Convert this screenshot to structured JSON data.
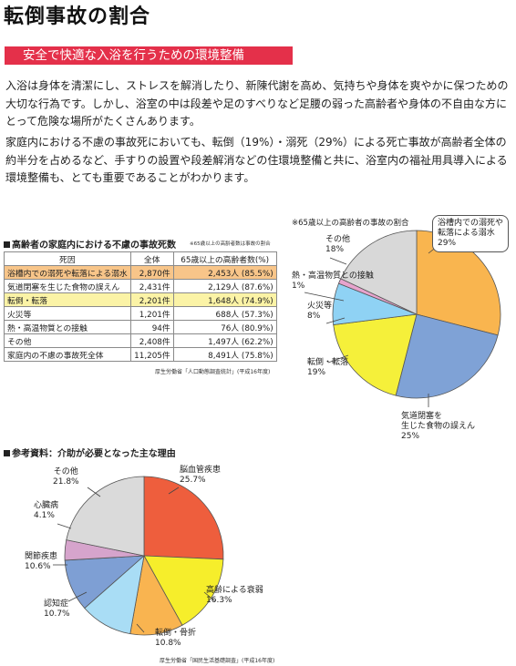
{
  "title": "転倒事故の割合",
  "banner": "安全で快適な入浴を行うための環境整備",
  "paragraphs": [
    "入浴は身体を清潔にし、ストレスを解消したり、新陳代謝を高め、気持ちや身体を爽やかに保つための大切な行為です。しかし、浴室の中は段差や足のすべりなど足腰の弱った高齢者や身体の不自由な方にとって危険な場所がたくさんあります。",
    "家庭内における不慮の事故死においても、転倒（19%）・溺死（29%）による死亡事故が高齢者全体の約半分を占めるなど、手すりの設置や段差解消などの住環境整備と共に、浴室内の福祉用具導入による環境整備も、とても重要であることがわかります。"
  ],
  "table_section": {
    "heading": "高齢者の家庭内における不慮の事故死数",
    "note": "※65歳以上の高齢者数は事故の割合",
    "headers": [
      "死因",
      "全体",
      "65歳以上の高齢者数(%)"
    ],
    "rows": [
      {
        "cause": "浴槽内での溺死や転落による溺水",
        "total": "2,870件",
        "elderly": "2,453人 (85.5%)",
        "highlight": "orange"
      },
      {
        "cause": "気道閉塞を生じた食物の誤えん",
        "total": "2,431件",
        "elderly": "2,129人 (87.6%)",
        "highlight": ""
      },
      {
        "cause": "転倒・転落",
        "total": "2,201件",
        "elderly": "1,648人 (74.9%)",
        "highlight": "yellow"
      },
      {
        "cause": "火災等",
        "total": "1,201件",
        "elderly": "688人 (57.3%)",
        "highlight": ""
      },
      {
        "cause": "熱・高温物質との接触",
        "total": "94件",
        "elderly": "76人 (80.9%)",
        "highlight": ""
      },
      {
        "cause": "その他",
        "total": "2,408件",
        "elderly": "1,497人 (62.2%)",
        "highlight": ""
      },
      {
        "cause": "家庭内の不慮の事故死全体",
        "total": "11,205件",
        "elderly": "8,491人 (75.8%)",
        "highlight": ""
      }
    ],
    "source": "厚生労働省「人口動態調査統計」(平成16年度)"
  },
  "chart_data": [
    {
      "type": "pie",
      "title": "※65歳以上の高齢者の事故の割合",
      "slices": [
        {
          "label": "浴槽内での溺死や転落による溺水",
          "value": 29,
          "color": "#f9b54f"
        },
        {
          "label": "気道閉塞を生じた食物の誤えん",
          "value": 25,
          "color": "#7fa2d6"
        },
        {
          "label": "転倒・転落",
          "value": 19,
          "color": "#f5f03a"
        },
        {
          "label": "火災等",
          "value": 8,
          "color": "#8fd2f4"
        },
        {
          "label": "熱・高温物質との接触",
          "value": 1,
          "color": "#e7a3cd"
        },
        {
          "label": "その他",
          "value": 18,
          "color": "#d8d8d8"
        }
      ],
      "display_labels": [
        {
          "line1": "浴槽内での溺死や",
          "line2": "転落による溺水",
          "pct": "29%"
        },
        {
          "line1": "気道閉塞を",
          "line2": "生じた食物の誤えん",
          "pct": "25%"
        },
        {
          "line1": "転倒・転落",
          "pct": "19%"
        },
        {
          "line1": "火災等",
          "pct": "8%"
        },
        {
          "line1": "熱・高温物質との接触",
          "pct": "1%"
        },
        {
          "line1": "その他",
          "pct": "18%"
        }
      ]
    },
    {
      "type": "pie",
      "title": "参考資料：介助が必要となった主な理由",
      "slices": [
        {
          "label": "脳血管疾患",
          "value": 25.7,
          "color": "#ee5e3d"
        },
        {
          "label": "高齢による衰弱",
          "value": 16.3,
          "color": "#f6ee2b"
        },
        {
          "label": "転倒・骨折",
          "value": 10.8,
          "color": "#f9b450"
        },
        {
          "label": "認知症",
          "value": 10.7,
          "color": "#a9ddf5"
        },
        {
          "label": "関節疾患",
          "value": 10.6,
          "color": "#7e9fd4"
        },
        {
          "label": "心臓病",
          "value": 4.1,
          "color": "#d6a4cc"
        },
        {
          "label": "その他",
          "value": 21.8,
          "color": "#dadada"
        }
      ],
      "display_labels": [
        {
          "line1": "脳血管疾患",
          "pct": "25.7%"
        },
        {
          "line1": "高齢による衰弱",
          "pct": "16.3%"
        },
        {
          "line1": "転倒・骨折",
          "pct": "10.8%"
        },
        {
          "line1": "認知症",
          "pct": "10.7%"
        },
        {
          "line1": "関節疾患",
          "pct": "10.6%"
        },
        {
          "line1": "心臓病",
          "pct": "4.1%"
        },
        {
          "line1": "その他",
          "pct": "21.8%"
        }
      ],
      "source": "厚生労働省「国民生活基礎調査」(平成16年度)"
    }
  ]
}
